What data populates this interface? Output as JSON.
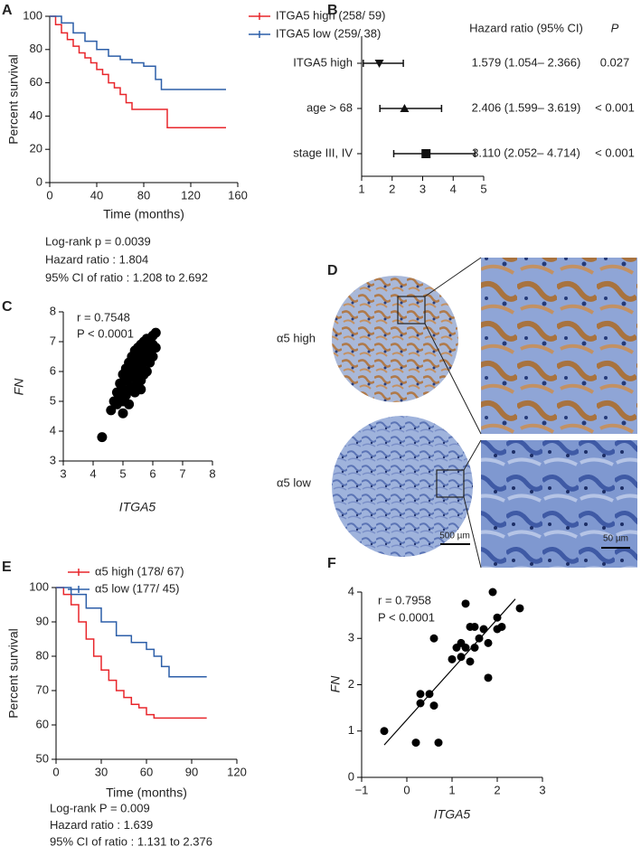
{
  "chart_data": [
    {
      "type": "line",
      "step": true,
      "panel": "A",
      "xlabel": "Time (months)",
      "ylabel": "Percent survival",
      "xlim": [
        0,
        160
      ],
      "xticks": [
        0,
        40,
        80,
        120,
        160
      ],
      "ylim": [
        0,
        100
      ],
      "yticks": [
        0,
        20,
        40,
        60,
        80,
        100
      ],
      "series": [
        {
          "name": "ITGA5 high (258/ 59)",
          "color": "#e8262b",
          "x": [
            0,
            5,
            10,
            15,
            20,
            25,
            30,
            35,
            40,
            45,
            50,
            55,
            60,
            65,
            70,
            100,
            150
          ],
          "values": [
            100,
            95,
            90,
            86,
            82,
            78,
            75,
            72,
            68,
            65,
            60,
            57,
            53,
            48,
            44,
            33,
            33
          ]
        },
        {
          "name": "ITGA5 low (259/ 38)",
          "color": "#2c5ea8",
          "x": [
            0,
            10,
            20,
            30,
            40,
            50,
            60,
            70,
            80,
            90,
            95,
            150
          ],
          "values": [
            100,
            96,
            90,
            85,
            80,
            76,
            74,
            72,
            70,
            62,
            56,
            56
          ]
        }
      ],
      "notes": [
        "Log-rank p = 0.0039",
        "Hazard ratio : 1.804",
        "95% CI of ratio : 1.208 to 2.692"
      ]
    },
    {
      "type": "forest",
      "panel": "B",
      "header": "Hazard ratio (95% CI)",
      "p_header": "P",
      "xlim": [
        1,
        5
      ],
      "xticks": [
        1,
        2,
        3,
        4,
        5
      ],
      "categories": [
        "ITGA5 high",
        "age > 68",
        "stage III, IV"
      ],
      "values": [
        1.579,
        2.406,
        3.11
      ],
      "lower": [
        1.054,
        1.599,
        2.052
      ],
      "upper": [
        2.366,
        3.619,
        4.714
      ],
      "value_labels": [
        "1.579 (1.054– 2.366)",
        "2.406 (1.599– 3.619)",
        "3.110 (2.052– 4.714)"
      ],
      "p_values": [
        "0.027",
        "< 0.001",
        "< 0.001"
      ],
      "markers": [
        "triangle-down",
        "triangle-up",
        "square"
      ],
      "color": "#111111"
    },
    {
      "type": "scatter",
      "panel": "C",
      "xlabel": "ITGA5",
      "ylabel": "FN",
      "color": "#000000",
      "xlim": [
        3,
        8
      ],
      "xticks": [
        3,
        4,
        5,
        6,
        7,
        8
      ],
      "ylim": [
        3,
        8
      ],
      "yticks": [
        3,
        4,
        5,
        6,
        7,
        8
      ],
      "x": [
        4.3,
        4.6,
        4.7,
        4.8,
        4.8,
        4.9,
        4.9,
        5.0,
        5.0,
        5.0,
        5.1,
        5.1,
        5.1,
        5.2,
        5.2,
        5.2,
        5.3,
        5.3,
        5.3,
        5.4,
        5.4,
        5.4,
        5.4,
        5.5,
        5.5,
        5.5,
        5.5,
        5.6,
        5.6,
        5.6,
        5.6,
        5.7,
        5.7,
        5.7,
        5.7,
        5.8,
        5.8,
        5.8,
        5.8,
        5.9,
        5.9,
        5.9,
        6.0,
        6.0,
        6.0,
        6.1,
        6.1,
        5.2,
        5.6,
        5.0
      ],
      "values": [
        3.8,
        4.7,
        5.0,
        4.9,
        5.3,
        5.1,
        5.6,
        5.0,
        5.4,
        5.9,
        5.2,
        5.7,
        6.1,
        5.4,
        5.8,
        6.3,
        5.5,
        6.0,
        6.5,
        5.3,
        5.8,
        6.2,
        6.7,
        5.6,
        6.0,
        6.4,
        6.8,
        5.7,
        6.1,
        6.5,
        6.9,
        5.9,
        6.3,
        6.7,
        7.0,
        6.0,
        6.4,
        6.8,
        7.1,
        6.3,
        6.6,
        7.0,
        6.5,
        6.9,
        7.2,
        6.8,
        7.3,
        4.9,
        5.4,
        4.6
      ],
      "notes": [
        "r = 0.7548",
        "P < 0.0001"
      ]
    },
    {
      "type": "line",
      "step": true,
      "panel": "E",
      "xlabel": "Time (months)",
      "ylabel": "Percent survival",
      "xlim": [
        0,
        120
      ],
      "xticks": [
        0,
        30,
        60,
        90,
        120
      ],
      "ylim": [
        50,
        100
      ],
      "yticks": [
        50,
        60,
        70,
        80,
        90,
        100
      ],
      "series": [
        {
          "name": "α5 high (178/ 67)",
          "color": "#e8262b",
          "x": [
            0,
            5,
            10,
            15,
            20,
            25,
            30,
            35,
            40,
            45,
            50,
            55,
            60,
            65,
            70,
            100
          ],
          "values": [
            100,
            98,
            95,
            90,
            85,
            80,
            76,
            73,
            70,
            68,
            66,
            65,
            63,
            62,
            62,
            62
          ]
        },
        {
          "name": "α5 low (177/ 45)",
          "color": "#2c5ea8",
          "x": [
            0,
            10,
            20,
            30,
            40,
            50,
            60,
            65,
            70,
            75,
            100
          ],
          "values": [
            100,
            98,
            94,
            90,
            86,
            84,
            82,
            80,
            77,
            74,
            74
          ]
        }
      ],
      "notes": [
        "Log-rank P = 0.009",
        "Hazard ratio : 1.639",
        "95% CI of ratio : 1.131 to 2.376"
      ]
    },
    {
      "type": "scatter",
      "panel": "F",
      "xlabel": "ITGA5",
      "ylabel": "FN",
      "color": "#000000",
      "xlim": [
        -1,
        3
      ],
      "xticks": [
        {
          "value": -1,
          "label": "−1"
        },
        0,
        1,
        2,
        3
      ],
      "ylim": [
        0,
        4
      ],
      "yticks": [
        0,
        1,
        2,
        3,
        4
      ],
      "x": [
        -0.5,
        0.2,
        0.3,
        0.3,
        0.5,
        0.6,
        0.6,
        0.7,
        1.0,
        1.1,
        1.2,
        1.2,
        1.3,
        1.4,
        1.4,
        1.5,
        1.5,
        1.6,
        1.7,
        1.8,
        1.8,
        1.9,
        2.0,
        2.0,
        2.1,
        2.5,
        1.3
      ],
      "values": [
        1.0,
        0.75,
        1.8,
        1.6,
        1.8,
        1.55,
        3.0,
        0.75,
        2.55,
        2.8,
        2.6,
        2.9,
        3.75,
        3.25,
        2.5,
        2.8,
        3.25,
        3.0,
        3.2,
        2.15,
        2.9,
        4.0,
        3.2,
        3.45,
        3.25,
        3.65,
        2.8
      ],
      "fit": {
        "x": [
          -0.5,
          2.4
        ],
        "values": [
          0.7,
          3.85
        ]
      },
      "notes": [
        "r = 0.7958",
        "P < 0.0001"
      ]
    }
  ],
  "image_panel": {
    "panel": "D",
    "labels": [
      "α5 high",
      "α5 low"
    ],
    "scale_bars": [
      "500 µm",
      "50 µm"
    ]
  }
}
